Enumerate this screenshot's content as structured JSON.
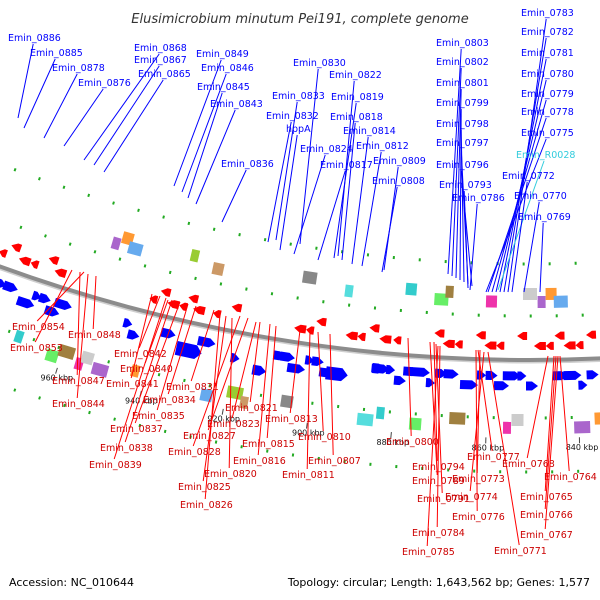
{
  "title": "Elusimicrobium minutum Pei191, complete genome",
  "footer": {
    "accession": "Accession: NC_010644",
    "summary": "Topology: circular; Length: 1,643,562 bp; Genes: 1,577"
  },
  "colors": {
    "forward": "#0000ff",
    "reverse": "#ff0000",
    "rna": "#33ccdd",
    "backbone": "#8c8c8c",
    "tick": "#22aa22"
  },
  "ticks": [
    {
      "label": "960 kbp"
    },
    {
      "label": "940 kbp"
    },
    {
      "label": "920 kbp"
    },
    {
      "label": "900 kbp"
    },
    {
      "label": "880 kbp"
    },
    {
      "label": "860 kbp"
    },
    {
      "label": "840 kbp"
    }
  ],
  "forward_labels": [
    {
      "text": "Emin_0886",
      "type": "cds"
    },
    {
      "text": "Emin_0885",
      "type": "cds"
    },
    {
      "text": "Emin_0878",
      "type": "cds"
    },
    {
      "text": "Emin_0876",
      "type": "cds"
    },
    {
      "text": "Emin_0868",
      "type": "cds"
    },
    {
      "text": "Emin_0867",
      "type": "cds"
    },
    {
      "text": "Emin_0865",
      "type": "cds"
    },
    {
      "text": "Emin_0849",
      "type": "cds"
    },
    {
      "text": "Emin_0846",
      "type": "cds"
    },
    {
      "text": "Emin_0845",
      "type": "cds"
    },
    {
      "text": "Emin_0843",
      "type": "cds"
    },
    {
      "text": "Emin_0836",
      "type": "cds"
    },
    {
      "text": "Emin_0830",
      "type": "cds"
    },
    {
      "text": "Emin_0833",
      "type": "cds"
    },
    {
      "text": "Emin_0832",
      "type": "cds"
    },
    {
      "text": "hppA",
      "type": "cds"
    },
    {
      "text": "Emin_0824",
      "type": "cds"
    },
    {
      "text": "Emin_0822",
      "type": "cds"
    },
    {
      "text": "Emin_0819",
      "type": "cds"
    },
    {
      "text": "Emin_0818",
      "type": "cds"
    },
    {
      "text": "Emin_0814",
      "type": "cds"
    },
    {
      "text": "Emin_0812",
      "type": "cds"
    },
    {
      "text": "Emin_0817",
      "type": "cds"
    },
    {
      "text": "Emin_0809",
      "type": "cds"
    },
    {
      "text": "Emin_0808",
      "type": "cds"
    },
    {
      "text": "Emin_0803",
      "type": "cds"
    },
    {
      "text": "Emin_0802",
      "type": "cds"
    },
    {
      "text": "Emin_0801",
      "type": "cds"
    },
    {
      "text": "Emin_0799",
      "type": "cds"
    },
    {
      "text": "Emin_0798",
      "type": "cds"
    },
    {
      "text": "Emin_0797",
      "type": "cds"
    },
    {
      "text": "Emin_0796",
      "type": "cds"
    },
    {
      "text": "Emin_0793",
      "type": "cds"
    },
    {
      "text": "Emin_0786",
      "type": "cds"
    },
    {
      "text": "Emin_0783",
      "type": "cds"
    },
    {
      "text": "Emin_0782",
      "type": "cds"
    },
    {
      "text": "Emin_0781",
      "type": "cds"
    },
    {
      "text": "Emin_0780",
      "type": "cds"
    },
    {
      "text": "Emin_0779",
      "type": "cds"
    },
    {
      "text": "Emin_0778",
      "type": "cds"
    },
    {
      "text": "Emin_0775",
      "type": "cds"
    },
    {
      "text": "Emin_R0028",
      "type": "rna"
    },
    {
      "text": "Emin_0772",
      "type": "cds"
    },
    {
      "text": "Emin_0770",
      "type": "cds"
    },
    {
      "text": "Emin_0769",
      "type": "cds"
    }
  ],
  "reverse_labels": [
    {
      "text": "Emin_0854"
    },
    {
      "text": "Emin_0848"
    },
    {
      "text": "Emin_0853"
    },
    {
      "text": "Emin_0842"
    },
    {
      "text": "Emin_0840"
    },
    {
      "text": "Emin_0847"
    },
    {
      "text": "Emin_0841"
    },
    {
      "text": "Emin_0844"
    },
    {
      "text": "Emin_0831"
    },
    {
      "text": "Emin_0834"
    },
    {
      "text": "Emin_0835"
    },
    {
      "text": "Emin_0837"
    },
    {
      "text": "Emin_0838"
    },
    {
      "text": "Emin_0839"
    },
    {
      "text": "Emin_0821"
    },
    {
      "text": "Emin_0823"
    },
    {
      "text": "Emin_0827"
    },
    {
      "text": "Emin_0828"
    },
    {
      "text": "Emin_0813"
    },
    {
      "text": "Emin_0815"
    },
    {
      "text": "Emin_0816"
    },
    {
      "text": "Emin_0820"
    },
    {
      "text": "Emin_0825"
    },
    {
      "text": "Emin_0826"
    },
    {
      "text": "Emin_0810"
    },
    {
      "text": "Emin_0807"
    },
    {
      "text": "Emin_0811"
    },
    {
      "text": "Emin_0800"
    },
    {
      "text": "Emin_0794"
    },
    {
      "text": "Emin_0789"
    },
    {
      "text": "Emin_0791"
    },
    {
      "text": "Emin_0784"
    },
    {
      "text": "Emin_0785"
    },
    {
      "text": "Emin_0777"
    },
    {
      "text": "Emin_0773"
    },
    {
      "text": "Emin_0774"
    },
    {
      "text": "Emin_0776"
    },
    {
      "text": "Emin_0771"
    },
    {
      "text": "Emin_0768"
    },
    {
      "text": "Emin_0764"
    },
    {
      "text": "Emin_0765"
    },
    {
      "text": "Emin_0766"
    },
    {
      "text": "Emin_0767"
    }
  ]
}
